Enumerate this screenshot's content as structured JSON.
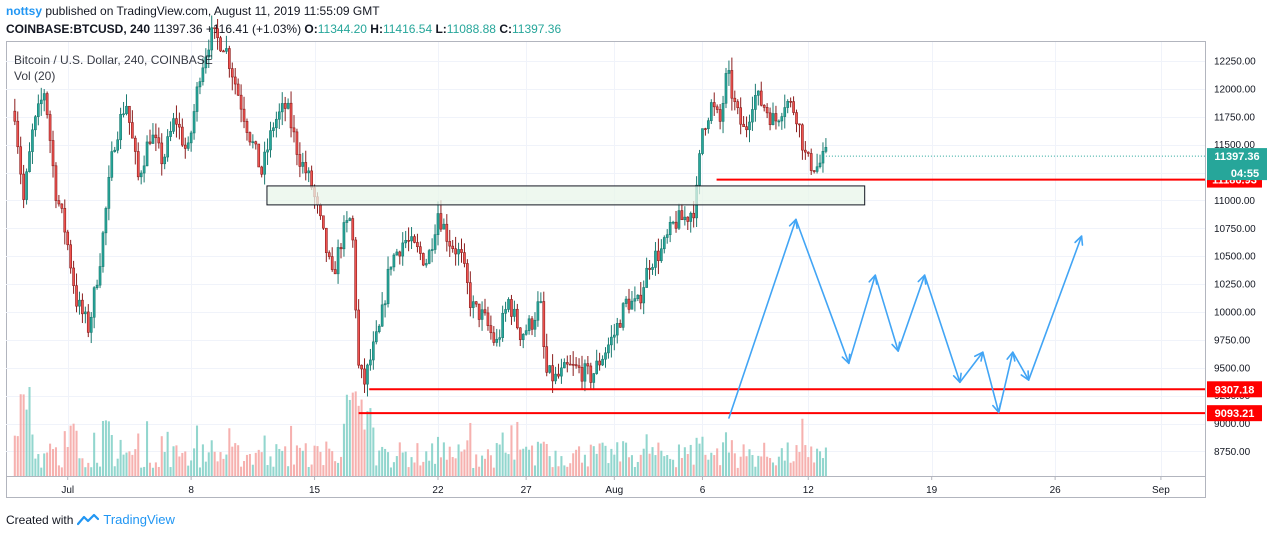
{
  "header": {
    "author": "nottsy",
    "published_text": " published on TradingView.com, August 11, 2019 11:55:09 GMT",
    "symbol": "COINBASE:BTCUSD, 240",
    "last": "11397.36",
    "change": "+116.41 (+1.03%)",
    "o_label": "O:",
    "o_value": "11344.20",
    "h_label": "H:",
    "h_value": "11416.54",
    "l_label": "L:",
    "l_value": "11088.88",
    "c_label": "C:",
    "c_value": "11397.36"
  },
  "footer": {
    "created_with": "Created with",
    "brand": "TradingView"
  },
  "colors": {
    "up": "#26a69a",
    "down": "#ef5350",
    "candle_up_body": "#26a69a",
    "candle_dn_body": "#ef5350",
    "support_line": "#ff0000",
    "projection": "#42a5f5",
    "zone_fill": "#e8f5e9",
    "price_tag": "#26a69a"
  },
  "chart_data": {
    "type": "candlestick",
    "title": "Bitcoin / U.S. Dollar, 240, COINBASE",
    "volume_label": "Vol (20)",
    "y_ticks": [
      8750,
      9000,
      9250,
      9500,
      9750,
      10000,
      10250,
      10500,
      10750,
      11000,
      11250,
      11500,
      11750,
      12000,
      12250
    ],
    "y_tick_labels": [
      "8750.00",
      "9000.00",
      "9250.00",
      "9500.00",
      "9750.00",
      "10000.00",
      "10250.00",
      "10500.00",
      "10750.00",
      "11000.00",
      "11250.00",
      "11500.00",
      "11750.00",
      "12000.00",
      "12250.00"
    ],
    "ylim": [
      8530,
      12420
    ],
    "x_ticks": [
      {
        "label": "Jul",
        "day": 1
      },
      {
        "label": "8",
        "day": 8
      },
      {
        "label": "15",
        "day": 15
      },
      {
        "label": "22",
        "day": 22
      },
      {
        "label": "27",
        "day": 27
      },
      {
        "label": "Aug",
        "day": 32
      },
      {
        "label": "6",
        "day": 37
      },
      {
        "label": "12",
        "day": 43
      },
      {
        "label": "19",
        "day": 50
      },
      {
        "label": "26",
        "day": 57
      },
      {
        "label": "Sep",
        "day": 63
      }
    ],
    "xlim": [
      -2.5,
      65.5
    ],
    "current_price": {
      "value": 11397.36,
      "label": "11397.36",
      "countdown": "04:55"
    },
    "levels": [
      {
        "value": 11186.93,
        "label": "11186.93",
        "from_day": 37.8
      },
      {
        "value": 9307.18,
        "label": "9307.18",
        "from_day": 18.1
      },
      {
        "value": 9093.21,
        "label": "9093.21",
        "from_day": 17.5
      }
    ],
    "zone": {
      "from_day": 12.3,
      "to_day": 46.2,
      "low": 10960,
      "high": 11130
    },
    "projection_path": [
      [
        38.5,
        9050
      ],
      [
        42.3,
        10830
      ],
      [
        45.3,
        9540
      ],
      [
        46.8,
        10330
      ],
      [
        48.1,
        9650
      ],
      [
        49.6,
        10330
      ],
      [
        51.6,
        9370
      ],
      [
        52.9,
        9640
      ],
      [
        53.8,
        9100
      ],
      [
        54.6,
        9640
      ],
      [
        55.5,
        9390
      ],
      [
        58.5,
        10680
      ]
    ],
    "price_anchors": [
      [
        -2.0,
        11800
      ],
      [
        -1.5,
        11000
      ],
      [
        -1.0,
        11600
      ],
      [
        -0.3,
        12000
      ],
      [
        0.3,
        11100
      ],
      [
        0.9,
        10700
      ],
      [
        1.5,
        10100
      ],
      [
        2.2,
        9850
      ],
      [
        2.9,
        10550
      ],
      [
        3.6,
        11500
      ],
      [
        4.3,
        11900
      ],
      [
        5.0,
        11200
      ],
      [
        5.7,
        11600
      ],
      [
        6.4,
        11350
      ],
      [
        7.1,
        11750
      ],
      [
        7.8,
        11400
      ],
      [
        8.5,
        12150
      ],
      [
        9.1,
        12480
      ],
      [
        9.9,
        12400
      ],
      [
        10.6,
        12000
      ],
      [
        11.3,
        11600
      ],
      [
        12.0,
        11250
      ],
      [
        12.7,
        11700
      ],
      [
        13.4,
        11850
      ],
      [
        14.1,
        11400
      ],
      [
        14.8,
        11150
      ],
      [
        15.4,
        10750
      ],
      [
        16.0,
        10300
      ],
      [
        16.6,
        10700
      ],
      [
        17.1,
        10850
      ],
      [
        17.5,
        9500
      ],
      [
        17.8,
        9350
      ],
      [
        18.3,
        9650
      ],
      [
        18.7,
        9850
      ],
      [
        19.3,
        10450
      ],
      [
        20.1,
        10650
      ],
      [
        20.8,
        10550
      ],
      [
        21.4,
        10450
      ],
      [
        22.0,
        10900
      ],
      [
        22.6,
        10650
      ],
      [
        23.3,
        10500
      ],
      [
        23.9,
        10050
      ],
      [
        24.6,
        9950
      ],
      [
        25.3,
        9700
      ],
      [
        26.0,
        10100
      ],
      [
        26.7,
        9800
      ],
      [
        27.3,
        9900
      ],
      [
        27.8,
        10100
      ],
      [
        28.1,
        9450
      ],
      [
        28.7,
        9400
      ],
      [
        29.4,
        9500
      ],
      [
        30.0,
        9480
      ],
      [
        30.7,
        9420
      ],
      [
        31.3,
        9600
      ],
      [
        32.0,
        9800
      ],
      [
        32.7,
        10100
      ],
      [
        33.3,
        10050
      ],
      [
        34.0,
        10450
      ],
      [
        34.7,
        10550
      ],
      [
        35.4,
        10800
      ],
      [
        36.1,
        10850
      ],
      [
        36.6,
        10950
      ],
      [
        37.0,
        11650
      ],
      [
        37.5,
        11850
      ],
      [
        38.0,
        11700
      ],
      [
        38.4,
        12150
      ],
      [
        38.9,
        11800
      ],
      [
        39.4,
        11600
      ],
      [
        39.9,
        11950
      ],
      [
        40.5,
        11850
      ],
      [
        41.1,
        11700
      ],
      [
        41.7,
        11900
      ],
      [
        42.3,
        11800
      ],
      [
        42.9,
        11350
      ],
      [
        43.5,
        11300
      ],
      [
        44.0,
        11397
      ]
    ]
  }
}
